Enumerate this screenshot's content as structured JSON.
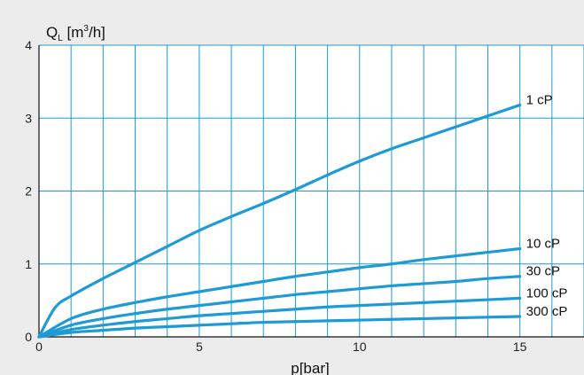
{
  "chart_data": {
    "type": "line",
    "title": "",
    "ylabel": {
      "prefix": "Q",
      "sub": "L",
      "unit_pre": " [m",
      "sup": "3",
      "unit_post": "/h]"
    },
    "xlabel": "p[bar]",
    "xlim": [
      0,
      17
    ],
    "ylim": [
      0,
      4
    ],
    "x_ticks": [
      0,
      5,
      10,
      15
    ],
    "y_ticks": [
      0,
      1,
      2,
      3,
      4
    ],
    "grid": true,
    "grid_x_step": 1,
    "grid_y_step": 1,
    "line_color": "#1e9ad6",
    "grid_color": "#1e9ad6",
    "plot_background": "#ffffff",
    "page_background": "#ececec",
    "series": [
      {
        "name": "1 cP",
        "x": [
          0,
          0.5,
          1,
          2,
          3,
          4,
          5,
          6,
          7,
          8,
          9,
          10,
          11,
          12,
          13,
          14,
          15
        ],
        "values": [
          0,
          0.4,
          0.56,
          0.8,
          1.02,
          1.24,
          1.46,
          1.65,
          1.83,
          2.02,
          2.22,
          2.41,
          2.58,
          2.73,
          2.88,
          3.03,
          3.18
        ]
      },
      {
        "name": "10 cP",
        "x": [
          0,
          1,
          2,
          3,
          4,
          5,
          6,
          7,
          8,
          9,
          10,
          11,
          12,
          13,
          14,
          15
        ],
        "values": [
          0,
          0.25,
          0.38,
          0.47,
          0.55,
          0.62,
          0.69,
          0.76,
          0.83,
          0.89,
          0.95,
          1.0,
          1.06,
          1.11,
          1.16,
          1.21
        ]
      },
      {
        "name": "30 cP",
        "x": [
          0,
          1,
          2,
          3,
          4,
          5,
          6,
          7,
          8,
          9,
          10,
          11,
          12,
          13,
          14,
          15
        ],
        "values": [
          0,
          0.16,
          0.25,
          0.32,
          0.38,
          0.43,
          0.48,
          0.53,
          0.58,
          0.62,
          0.66,
          0.7,
          0.73,
          0.76,
          0.8,
          0.83
        ]
      },
      {
        "name": "100 cP",
        "x": [
          0,
          1,
          2,
          3,
          4,
          5,
          6,
          7,
          8,
          9,
          10,
          11,
          12,
          13,
          14,
          15
        ],
        "values": [
          0,
          0.1,
          0.16,
          0.21,
          0.25,
          0.29,
          0.32,
          0.35,
          0.38,
          0.41,
          0.43,
          0.45,
          0.47,
          0.49,
          0.51,
          0.53
        ]
      },
      {
        "name": "300 cP",
        "x": [
          0,
          1,
          2,
          3,
          4,
          5,
          6,
          7,
          8,
          9,
          10,
          11,
          12,
          13,
          14,
          15
        ],
        "values": [
          0,
          0.06,
          0.09,
          0.12,
          0.14,
          0.16,
          0.18,
          0.2,
          0.21,
          0.22,
          0.23,
          0.24,
          0.25,
          0.26,
          0.27,
          0.28
        ]
      }
    ]
  }
}
